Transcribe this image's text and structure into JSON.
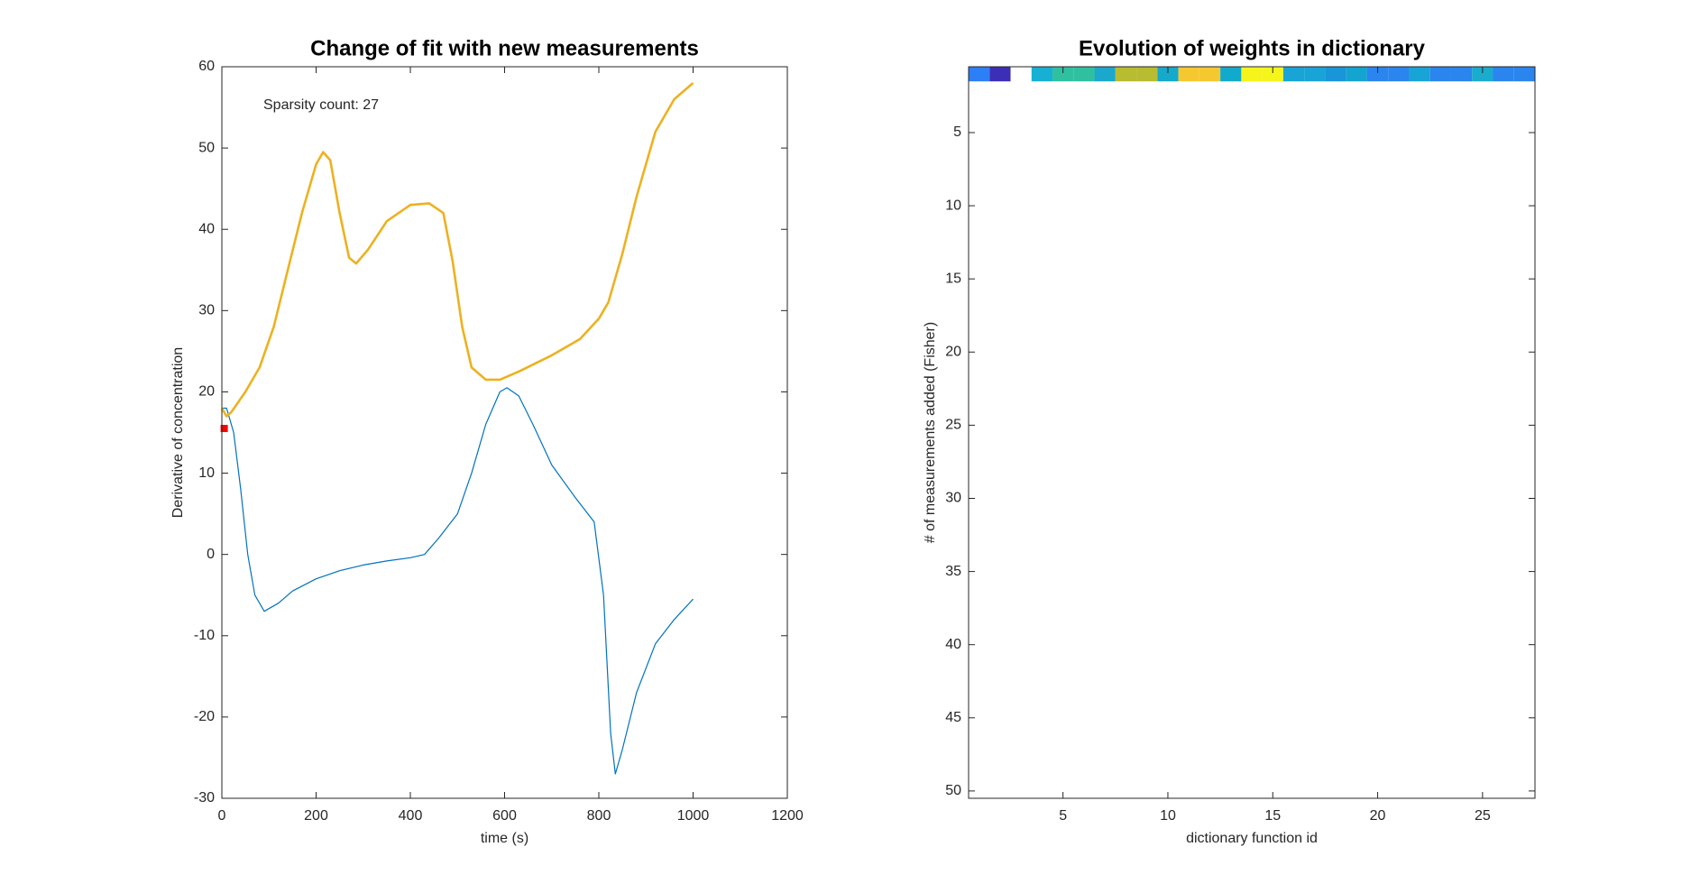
{
  "chart_data": [
    {
      "type": "line",
      "title": "Change of fit with new measurements",
      "xlabel": "time (s)",
      "ylabel": "Derivative of concentration",
      "annotation": "Sparsity count: 27",
      "xlim": [
        0,
        1200
      ],
      "xticks": [
        0,
        200,
        400,
        600,
        800,
        1000,
        1200
      ],
      "ylim": [
        -30,
        60
      ],
      "yticks": [
        -30,
        -20,
        -10,
        0,
        10,
        20,
        30,
        40,
        50,
        60
      ],
      "series": [
        {
          "color": "#0072bd",
          "width": 1.2,
          "x": [
            0,
            10,
            25,
            40,
            55,
            70,
            90,
            120,
            150,
            200,
            250,
            300,
            350,
            400,
            430,
            460,
            500,
            530,
            560,
            590,
            605,
            630,
            660,
            700,
            750,
            790,
            810,
            825,
            835,
            850,
            880,
            920,
            960,
            1000
          ],
          "values": [
            18,
            18,
            15,
            8,
            0,
            -5,
            -7,
            -6,
            -4.5,
            -3,
            -2,
            -1.3,
            -0.8,
            -0.4,
            0,
            2,
            5,
            10,
            16,
            20,
            20.5,
            19.5,
            16,
            11,
            7,
            4,
            -5,
            -22,
            -27,
            -24,
            -17,
            -11,
            -8,
            -5.5
          ]
        },
        {
          "color": "#edb120",
          "width": 2.6,
          "x": [
            0,
            10,
            20,
            50,
            80,
            110,
            140,
            170,
            200,
            215,
            230,
            250,
            270,
            285,
            310,
            350,
            400,
            440,
            470,
            490,
            510,
            530,
            560,
            590,
            630,
            700,
            760,
            800,
            820,
            850,
            880,
            920,
            960,
            1000
          ],
          "values": [
            18,
            17,
            17.5,
            20,
            23,
            28,
            35,
            42,
            48,
            49.5,
            48.5,
            42,
            36.5,
            35.8,
            37.5,
            41,
            43,
            43.2,
            42,
            36,
            28,
            23,
            21.5,
            21.5,
            22.5,
            24.5,
            26.5,
            29,
            31,
            37,
            44,
            52,
            56,
            58
          ]
        },
        {
          "color": "#ff0000",
          "marker": "square",
          "x": [
            5
          ],
          "values": [
            15.5
          ]
        }
      ]
    },
    {
      "type": "heatmap",
      "title": "Evolution of weights in dictionary",
      "xlabel": "dictionary function id",
      "ylabel": "# of measurements added (Fisher)",
      "xlim": [
        0.5,
        27.5
      ],
      "xticks": [
        5,
        10,
        15,
        20,
        25
      ],
      "ylim": [
        0.5,
        50.5
      ],
      "yticks": [
        5,
        10,
        15,
        20,
        25,
        30,
        35,
        40,
        45,
        50
      ],
      "y_reversed": true,
      "cell_colors": [
        [
          "#2d7ff5",
          "#3c2fb5",
          null,
          "#17b0d4",
          "#2fc0a0",
          "#2fc0a0",
          "#1ca7cc",
          "#b8bc30",
          "#b8bc30",
          "#15a9cb",
          "#f6c830",
          "#f6c830",
          "#12aacc",
          "#f5f51c",
          "#f5f51c",
          "#18a4d6",
          "#18a4d6",
          "#1996da",
          "#13a5d0",
          "#2b85ee",
          "#2b85ee",
          "#18a4d6",
          "#2b85ee",
          "#2b85ee",
          "#1aaccc",
          "#2b85ee",
          "#2b85ee"
        ]
      ]
    }
  ]
}
